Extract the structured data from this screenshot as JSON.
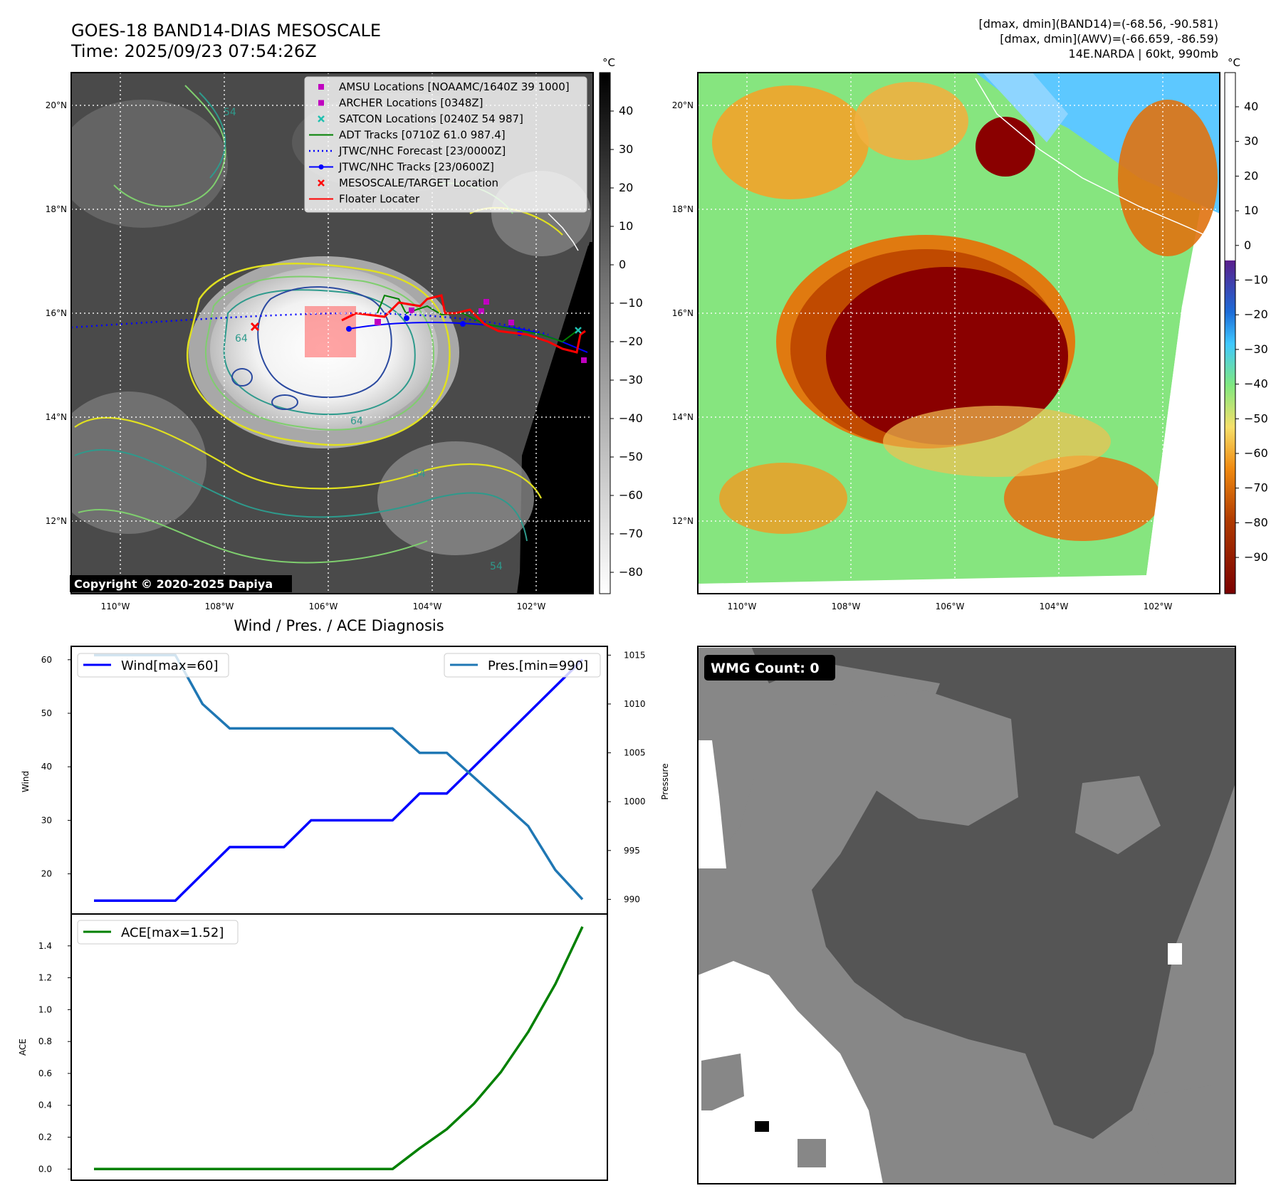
{
  "header": {
    "title_line1": "GOES-18 BAND14-DIAS MESOSCALE",
    "title_line2": "Time: 2025/09/23 07:54:26Z",
    "info_line1": "[dmax, dmin](BAND14)=(-68.56, -90.581)",
    "info_line2": "[dmax, dmin](AWV)=(-66.659, -86.59)",
    "info_line3": "14E.NARDA | 60kt, 990mb"
  },
  "map": {
    "lat_labels": [
      "20°N",
      "18°N",
      "16°N",
      "14°N",
      "12°N"
    ],
    "lon_labels": [
      "110°W",
      "108°W",
      "106°W",
      "104°W",
      "102°W"
    ],
    "copyright": "Copyright © 2020-2025 Dapiya",
    "contour_labels": [
      "54",
      "64",
      "64",
      "54",
      "54",
      "64"
    ],
    "colorbar_unit": "°C",
    "colorbar_ticks_ir": [
      "40",
      "30",
      "20",
      "10",
      "0",
      "−10",
      "−20",
      "−30",
      "−40",
      "−50",
      "−60",
      "−70",
      "−80"
    ],
    "colorbar_ticks_wv": [
      "40",
      "30",
      "20",
      "10",
      "0",
      "−10",
      "−20",
      "−30",
      "−40",
      "−50",
      "−60",
      "−70",
      "−80",
      "−90"
    ],
    "colors": {
      "amsu": "#c000c0",
      "archer": "#c000c0",
      "satcon": "#20c0b0",
      "adt": "#008000",
      "forecast": "#0000ff",
      "tracks": "#0000ff",
      "target": "#ff0000",
      "floater": "#ff0000"
    }
  },
  "legend": [
    {
      "label": "AMSU Locations [NOAAMC/1640Z 39 1000]",
      "marker": "square",
      "color": "#c000c0"
    },
    {
      "label": "ARCHER Locations [0348Z]",
      "marker": "square",
      "color": "#c000c0"
    },
    {
      "label": "SATCON Locations [0240Z 54 987]",
      "marker": "x",
      "color": "#20c0b0"
    },
    {
      "label": "ADT Tracks [0710Z 61.0 987.4]",
      "marker": "line",
      "color": "#008000"
    },
    {
      "label": "JTWC/NHC Forecast [23/0000Z]",
      "marker": "dotted",
      "color": "#0000ff"
    },
    {
      "label": "JTWC/NHC Tracks [23/0600Z]",
      "marker": "line-dot",
      "color": "#0000ff"
    },
    {
      "label": "MESOSCALE/TARGET Location",
      "marker": "x",
      "color": "#ff0000"
    },
    {
      "label": "Floater Locater",
      "marker": "line",
      "color": "#ff0000"
    }
  ],
  "diagnosis": {
    "title": "Wind / Pres. / ACE Diagnosis",
    "wind_legend": "Wind[max=60]",
    "pres_legend": "Pres.[min=990]",
    "ace_legend": "ACE[max=1.52]",
    "wind_ylabel": "Wind",
    "pres_ylabel": "Pressure",
    "ace_ylabel": "ACE",
    "wind_ticks": [
      "60",
      "50",
      "40",
      "30",
      "20"
    ],
    "pres_ticks": [
      "1015",
      "1010",
      "1005",
      "1000",
      "995",
      "990"
    ],
    "ace_ticks": [
      "1.4",
      "1.2",
      "1.0",
      "0.8",
      "0.6",
      "0.4",
      "0.2",
      "0.0"
    ]
  },
  "wmg": {
    "label": "WMG Count: 0",
    "colors": {
      "dark": "#555555",
      "mid": "#878787",
      "white": "#ffffff",
      "black": "#000000"
    }
  },
  "chart_data": [
    {
      "type": "line",
      "title": "Wind / Pres. / ACE Diagnosis",
      "x": [
        0,
        1,
        2,
        3,
        4,
        5,
        6,
        7,
        8,
        9,
        10,
        11,
        12,
        13,
        14,
        15,
        16,
        17,
        18
      ],
      "series": [
        {
          "name": "Wind[max=60]",
          "axis": "left",
          "color": "#0000ff",
          "values": [
            15,
            15,
            15,
            15,
            20,
            25,
            25,
            25,
            30,
            30,
            30,
            30,
            35,
            35,
            40,
            45,
            50,
            55,
            60
          ]
        },
        {
          "name": "Pres.[min=990]",
          "axis": "right",
          "color": "#1f77b4",
          "values": [
            1015,
            1015,
            1015,
            1015,
            1010,
            1007.5,
            1007.5,
            1007.5,
            1007.5,
            1007.5,
            1007.5,
            1007.5,
            1005,
            1005,
            1002.5,
            1000,
            997.5,
            993,
            990
          ]
        }
      ],
      "ylabel": "Wind",
      "ylabel_right": "Pressure",
      "ylim": [
        12.5,
        62.5
      ],
      "ylim_right": [
        988.5,
        1015.9
      ]
    },
    {
      "type": "line",
      "x": [
        0,
        1,
        2,
        3,
        4,
        5,
        6,
        7,
        8,
        9,
        10,
        11,
        12,
        13,
        14,
        15,
        16,
        17,
        18
      ],
      "series": [
        {
          "name": "ACE[max=1.52]",
          "color": "#008000",
          "values": [
            0,
            0,
            0,
            0,
            0,
            0,
            0,
            0,
            0,
            0,
            0,
            0,
            0.13,
            0.25,
            0.41,
            0.61,
            0.86,
            1.16,
            1.52
          ]
        }
      ],
      "ylabel": "ACE",
      "ylim": [
        -0.07,
        1.6
      ]
    }
  ]
}
